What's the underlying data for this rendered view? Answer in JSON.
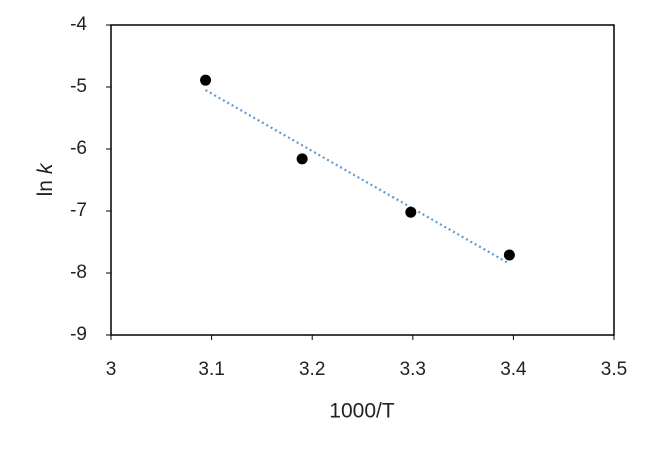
{
  "chart_data": {
    "type": "scatter",
    "xlabel": "1000/T",
    "ylabel": {
      "text": "ln",
      "variable": "k"
    },
    "series": [
      {
        "color": "#000000",
        "x": [
          3.094,
          3.19,
          3.298,
          3.396
        ],
        "values": [
          -4.89,
          -6.16,
          -7.02,
          -7.71
        ]
      }
    ],
    "trendline": {
      "x": [
        3.094,
        3.396
      ],
      "y": [
        -5.05,
        -7.85
      ],
      "color": "#5b9bd5",
      "style": "dotted"
    },
    "xlim": [
      3,
      3.5
    ],
    "xticks": [
      3,
      3.1,
      3.2,
      3.3,
      3.4,
      3.5
    ],
    "ylim": [
      -9,
      -4
    ],
    "yticks": [
      -9,
      -8,
      -7,
      -6,
      -5,
      -4
    ],
    "grid": false
  }
}
